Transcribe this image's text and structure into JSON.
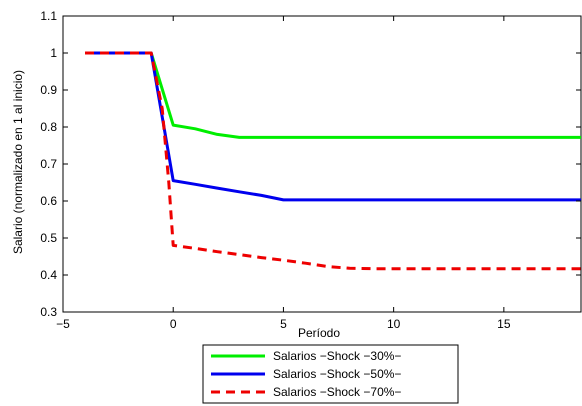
{
  "chart_data": {
    "type": "line",
    "title": "",
    "xlabel": "Período",
    "ylabel": "Salario (normalizado en 1 al inicio)",
    "xlim": [
      -5,
      18.5
    ],
    "ylim": [
      0.3,
      1.1
    ],
    "xticks": [
      -5,
      0,
      5,
      10,
      15
    ],
    "yticks": [
      0.3,
      0.4,
      0.5,
      0.6,
      0.7,
      0.8,
      0.9,
      1,
      1.1
    ],
    "xtick_labels": [
      "−5",
      "0",
      "5",
      "10",
      "15"
    ],
    "ytick_labels": [
      "0.3",
      "0.4",
      "0.5",
      "0.6",
      "0.7",
      "0.8",
      "0.9",
      "1",
      "1.1"
    ],
    "grid": false,
    "legend_position": "bottom",
    "series": [
      {
        "name": "Salarios −Shock −30%−",
        "color": "#00ee00",
        "dash": "solid",
        "x": [
          -4,
          -1,
          0,
          1,
          2,
          3,
          4,
          5,
          6,
          7,
          8,
          9,
          10,
          11,
          12,
          13,
          14,
          15,
          16,
          17,
          18,
          18.5
        ],
        "y": [
          1.0,
          1.0,
          0.805,
          0.795,
          0.78,
          0.772,
          0.772,
          0.772,
          0.772,
          0.772,
          0.772,
          0.772,
          0.772,
          0.772,
          0.772,
          0.772,
          0.772,
          0.772,
          0.772,
          0.772,
          0.772,
          0.772
        ]
      },
      {
        "name": "Salarios −Shock −50%−",
        "color": "#0000ee",
        "dash": "solid",
        "x": [
          -4,
          -1,
          0,
          1,
          2,
          3,
          4,
          5,
          6,
          7,
          8,
          9,
          10,
          11,
          12,
          13,
          14,
          15,
          16,
          17,
          18,
          18.5
        ],
        "y": [
          1.0,
          1.0,
          0.655,
          0.645,
          0.635,
          0.625,
          0.615,
          0.603,
          0.603,
          0.603,
          0.603,
          0.603,
          0.603,
          0.603,
          0.603,
          0.603,
          0.603,
          0.603,
          0.603,
          0.603,
          0.603,
          0.603
        ]
      },
      {
        "name": "Salarios −Shock −70%−",
        "color": "#ee0000",
        "dash": "dashed",
        "x": [
          -4,
          -1,
          -0.5,
          -0.2,
          0,
          1,
          2,
          3,
          4,
          5,
          6,
          7,
          8,
          9,
          10,
          11,
          12,
          13,
          14,
          15,
          16,
          17,
          18,
          18.5
        ],
        "y": [
          1.0,
          1.0,
          0.85,
          0.65,
          0.48,
          0.472,
          0.463,
          0.455,
          0.447,
          0.44,
          0.432,
          0.423,
          0.418,
          0.417,
          0.417,
          0.417,
          0.417,
          0.417,
          0.417,
          0.417,
          0.417,
          0.417,
          0.417,
          0.417
        ]
      }
    ]
  }
}
